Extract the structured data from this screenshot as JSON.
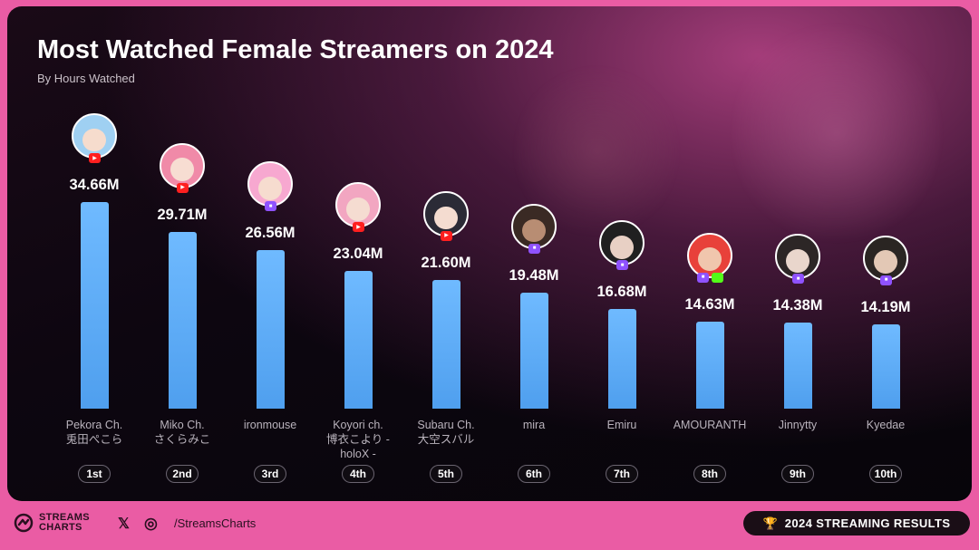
{
  "page": {
    "title": "Most Watched Female Streamers on 2024",
    "subtitle": "By Hours Watched"
  },
  "chart_data": {
    "type": "bar",
    "title": "Most Watched Female Streamers on 2024",
    "subtitle": "By Hours Watched",
    "xlabel": "",
    "ylabel": "",
    "unit": "M",
    "ylim": [
      0,
      34.66
    ],
    "grid": false,
    "categories": [
      "Pekora Ch. 兎田ぺこら",
      "Miko Ch. さくらみこ",
      "ironmouse",
      "Koyori ch. 博衣こより - holoX -",
      "Subaru Ch. 大空スバル",
      "mira",
      "Emiru",
      "AMOURANTH",
      "Jinnytty",
      "Kyedae"
    ],
    "values": [
      34.66,
      29.71,
      26.56,
      23.04,
      21.6,
      19.48,
      16.68,
      14.63,
      14.38,
      14.19
    ],
    "items": [
      {
        "name_lines": [
          "Pekora Ch.",
          "兎田ぺこら"
        ],
        "value_label": "34.66M",
        "rank": "1st",
        "platform": "youtube-icon",
        "platform_glyph": "▶"
      },
      {
        "name_lines": [
          "Miko Ch.",
          "さくらみこ"
        ],
        "value_label": "29.71M",
        "rank": "2nd",
        "platform": "youtube-icon",
        "platform_glyph": "▶"
      },
      {
        "name_lines": [
          "ironmouse"
        ],
        "value_label": "26.56M",
        "rank": "3rd",
        "platform": "twitch-icon",
        "platform_glyph": "■"
      },
      {
        "name_lines": [
          "Koyori ch.",
          "博衣こより -",
          "holoX -"
        ],
        "value_label": "23.04M",
        "rank": "4th",
        "platform": "youtube-icon",
        "platform_glyph": "▶"
      },
      {
        "name_lines": [
          "Subaru Ch.",
          "大空スバル"
        ],
        "value_label": "21.60M",
        "rank": "5th",
        "platform": "youtube-icon",
        "platform_glyph": "▶"
      },
      {
        "name_lines": [
          "mira"
        ],
        "value_label": "19.48M",
        "rank": "6th",
        "platform": "twitch-icon",
        "platform_glyph": "■"
      },
      {
        "name_lines": [
          "Emiru"
        ],
        "value_label": "16.68M",
        "rank": "7th",
        "platform": "twitch-icon",
        "platform_glyph": "■"
      },
      {
        "name_lines": [
          "AMOURANTH"
        ],
        "value_label": "14.63M",
        "rank": "8th",
        "platform": "twitch-and-kick-icon",
        "platform_glyph": "■"
      },
      {
        "name_lines": [
          "Jinnytty"
        ],
        "value_label": "14.38M",
        "rank": "9th",
        "platform": "twitch-icon",
        "platform_glyph": "■"
      },
      {
        "name_lines": [
          "Kyedae"
        ],
        "value_label": "14.19M",
        "rank": "10th",
        "platform": "twitch-icon",
        "platform_glyph": "■"
      }
    ]
  },
  "colors": {
    "bar": "#5aa9f5",
    "accent": "#ea5ca4",
    "youtube": "#ff1f1f",
    "twitch": "#8f52ff",
    "kick": "#53fc18"
  },
  "avatar_palette": [
    {
      "hair": "#9fd0f2",
      "face": "#f6dccd"
    },
    {
      "hair": "#f08aa8",
      "face": "#f7ddd2"
    },
    {
      "hair": "#f7a8d0",
      "face": "#f6dccf"
    },
    {
      "hair": "#f2a6c1",
      "face": "#f5dcd1"
    },
    {
      "hair": "#2b2b36",
      "face": "#f4dcd0"
    },
    {
      "hair": "#3a2a24",
      "face": "#b88d73"
    },
    {
      "hair": "#202020",
      "face": "#e8d0c4"
    },
    {
      "hair": "#e8413a",
      "face": "#f0c6ad"
    },
    {
      "hair": "#2c2626",
      "face": "#e9d6cc"
    },
    {
      "hair": "#2a2522",
      "face": "#e3c8b5"
    }
  ],
  "footer": {
    "logo_line1": "STREAMS",
    "logo_line2": "CHARTS",
    "logo_icon": "streamscharts-logo-icon",
    "x_icon": "x-icon",
    "x_glyph": "𝕏",
    "instagram_icon": "instagram-icon",
    "instagram_glyph": "◎",
    "handle": "/StreamsCharts",
    "trophy_icon": "trophy-icon",
    "trophy_glyph": "🏆",
    "results_label": "2024 STREAMING RESULTS"
  }
}
